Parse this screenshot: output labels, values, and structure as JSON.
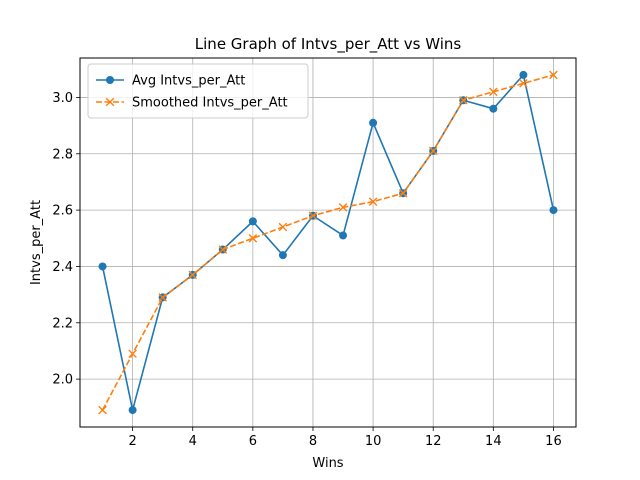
{
  "chart_data": {
    "type": "line",
    "title": "Line Graph of Intvs_per_Att vs Wins",
    "xlabel": "Wins",
    "ylabel": "Intvs_per_Att",
    "x": [
      1,
      2,
      3,
      4,
      5,
      6,
      7,
      8,
      9,
      10,
      11,
      12,
      13,
      14,
      15,
      16
    ],
    "series": [
      {
        "name": "Avg Intvs_per_Att",
        "values": [
          2.4,
          1.89,
          2.29,
          2.37,
          2.46,
          2.56,
          2.44,
          2.58,
          2.51,
          2.91,
          2.66,
          2.81,
          2.99,
          2.96,
          3.08,
          2.6
        ],
        "color": "#1f77b4",
        "marker": "circle",
        "linestyle": "solid"
      },
      {
        "name": "Smoothed Intvs_per_Att",
        "values": [
          1.89,
          2.09,
          2.29,
          2.37,
          2.46,
          2.5,
          2.54,
          2.58,
          2.61,
          2.63,
          2.66,
          2.81,
          2.99,
          3.02,
          3.05,
          3.08
        ],
        "color": "#ff7f0e",
        "marker": "x",
        "linestyle": "dashed"
      }
    ],
    "xlim": [
      0.25,
      16.75
    ],
    "ylim": [
      1.83,
      3.14
    ],
    "xticks": [
      2,
      4,
      6,
      8,
      10,
      12,
      14,
      16
    ],
    "yticks": [
      2.0,
      2.2,
      2.4,
      2.6,
      2.8,
      3.0
    ],
    "xtick_labels": [
      "2",
      "4",
      "6",
      "8",
      "10",
      "12",
      "14",
      "16"
    ],
    "ytick_labels": [
      "2.0",
      "2.2",
      "2.4",
      "2.6",
      "2.8",
      "3.0"
    ],
    "grid": true,
    "legend_position": "top-left"
  }
}
